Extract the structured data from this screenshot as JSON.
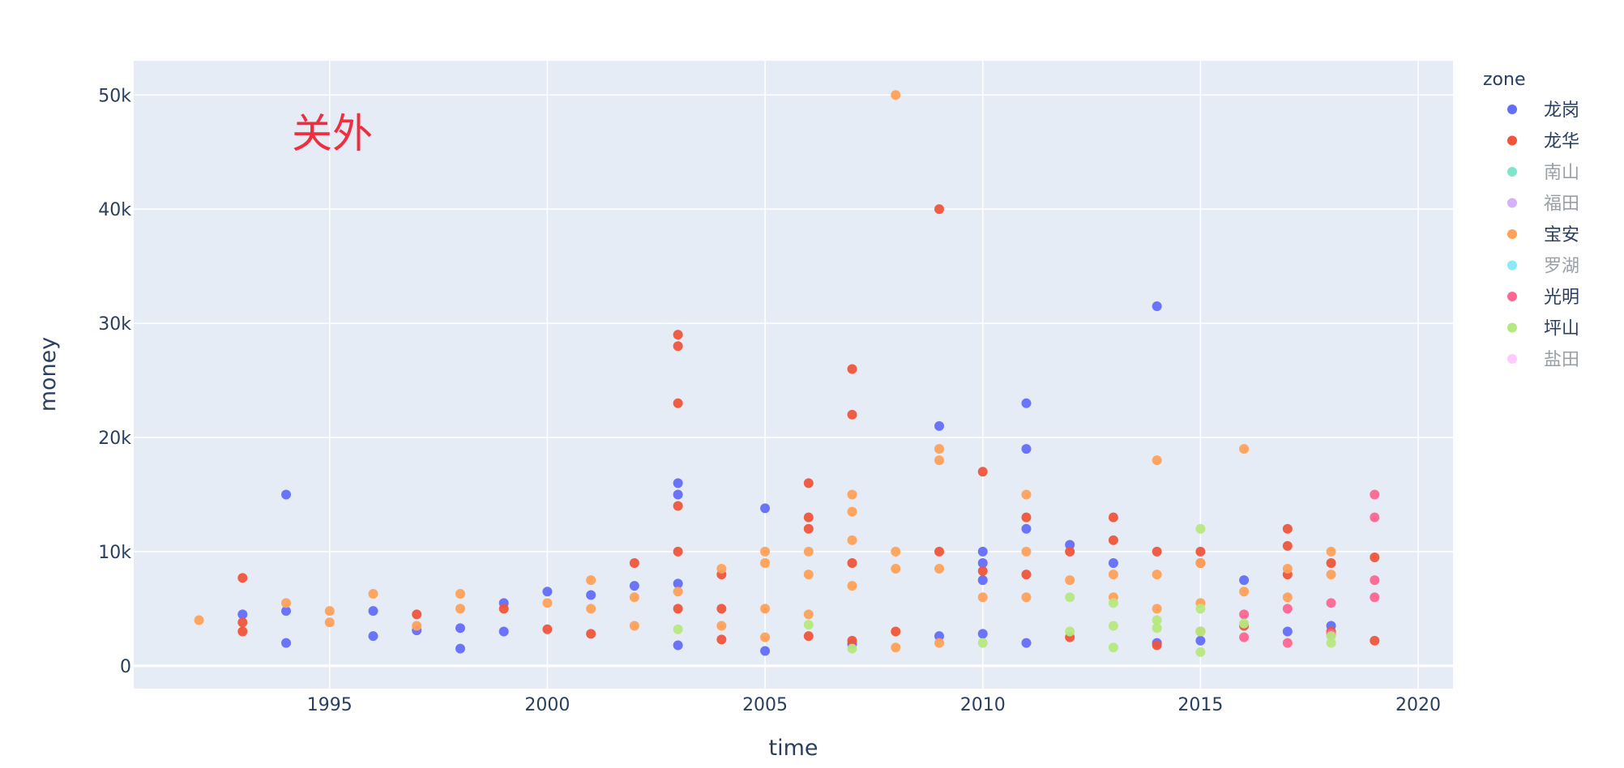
{
  "chart_data": {
    "type": "scatter",
    "title": "",
    "annotation": "关外",
    "xlabel": "time",
    "ylabel": "money",
    "xlim": [
      1990.5,
      2020.8
    ],
    "ylim": [
      -2000,
      53000
    ],
    "x_ticks": [
      1995,
      2000,
      2005,
      2010,
      2015,
      2020
    ],
    "y_ticks": [
      0,
      10000,
      20000,
      30000,
      40000,
      50000
    ],
    "y_tick_labels": [
      "0",
      "10k",
      "20k",
      "30k",
      "40k",
      "50k"
    ],
    "legend_title": "zone",
    "legend_position": "right",
    "grid": true,
    "series": [
      {
        "name": "龙岗",
        "color": "#636efa",
        "visible": true,
        "points": [
          [
            1993,
            4500
          ],
          [
            1994,
            15000
          ],
          [
            1994,
            2000
          ],
          [
            1994,
            4800
          ],
          [
            1996,
            2600
          ],
          [
            1996,
            4800
          ],
          [
            1997,
            3100
          ],
          [
            1998,
            1500
          ],
          [
            1998,
            3300
          ],
          [
            1999,
            5500
          ],
          [
            1999,
            3000
          ],
          [
            2000,
            6500
          ],
          [
            2001,
            6200
          ],
          [
            2002,
            7000
          ],
          [
            2003,
            16000
          ],
          [
            2003,
            15000
          ],
          [
            2003,
            7200
          ],
          [
            2003,
            1800
          ],
          [
            2005,
            13800
          ],
          [
            2005,
            1300
          ],
          [
            2007,
            1900
          ],
          [
            2009,
            21000
          ],
          [
            2009,
            2600
          ],
          [
            2010,
            10000
          ],
          [
            2010,
            9000
          ],
          [
            2010,
            7500
          ],
          [
            2010,
            2800
          ],
          [
            2011,
            23000
          ],
          [
            2011,
            19000
          ],
          [
            2011,
            12000
          ],
          [
            2011,
            2000
          ],
          [
            2012,
            10600
          ],
          [
            2013,
            9000
          ],
          [
            2014,
            31500
          ],
          [
            2014,
            2000
          ],
          [
            2015,
            2200
          ],
          [
            2016,
            7500
          ],
          [
            2017,
            3000
          ],
          [
            2018,
            3500
          ]
        ]
      },
      {
        "name": "龙华",
        "color": "#ef553b",
        "visible": true,
        "points": [
          [
            1993,
            7700
          ],
          [
            1993,
            3000
          ],
          [
            1993,
            3800
          ],
          [
            1997,
            4500
          ],
          [
            1999,
            5000
          ],
          [
            2000,
            3200
          ],
          [
            2001,
            2800
          ],
          [
            2002,
            9000
          ],
          [
            2003,
            29000
          ],
          [
            2003,
            28000
          ],
          [
            2003,
            23000
          ],
          [
            2003,
            14000
          ],
          [
            2003,
            10000
          ],
          [
            2003,
            5000
          ],
          [
            2004,
            8000
          ],
          [
            2004,
            2300
          ],
          [
            2004,
            5000
          ],
          [
            2006,
            16000
          ],
          [
            2006,
            13000
          ],
          [
            2006,
            12000
          ],
          [
            2006,
            2600
          ],
          [
            2007,
            26000
          ],
          [
            2007,
            22000
          ],
          [
            2007,
            9000
          ],
          [
            2007,
            2200
          ],
          [
            2008,
            3000
          ],
          [
            2009,
            40000
          ],
          [
            2009,
            10000
          ],
          [
            2010,
            17000
          ],
          [
            2010,
            8300
          ],
          [
            2011,
            13000
          ],
          [
            2011,
            8000
          ],
          [
            2012,
            10000
          ],
          [
            2012,
            2500
          ],
          [
            2013,
            13000
          ],
          [
            2013,
            11000
          ],
          [
            2014,
            10000
          ],
          [
            2014,
            1800
          ],
          [
            2015,
            10000
          ],
          [
            2015,
            9000
          ],
          [
            2015,
            3000
          ],
          [
            2016,
            3500
          ],
          [
            2017,
            12000
          ],
          [
            2017,
            10500
          ],
          [
            2017,
            8000
          ],
          [
            2018,
            9000
          ],
          [
            2018,
            3000
          ],
          [
            2019,
            9500
          ],
          [
            2019,
            2200
          ]
        ]
      },
      {
        "name": "南山",
        "color": "#00cc96",
        "visible": false,
        "points": []
      },
      {
        "name": "福田",
        "color": "#ab63fa",
        "visible": false,
        "points": []
      },
      {
        "name": "宝安",
        "color": "#ffa15a",
        "visible": true,
        "points": [
          [
            1992,
            4000
          ],
          [
            1994,
            5500
          ],
          [
            1995,
            4800
          ],
          [
            1995,
            3800
          ],
          [
            1996,
            6300
          ],
          [
            1997,
            3500
          ],
          [
            1998,
            6300
          ],
          [
            1998,
            5000
          ],
          [
            2000,
            5500
          ],
          [
            2001,
            7500
          ],
          [
            2001,
            5000
          ],
          [
            2002,
            3500
          ],
          [
            2002,
            6000
          ],
          [
            2003,
            6500
          ],
          [
            2004,
            8500
          ],
          [
            2004,
            3500
          ],
          [
            2005,
            10000
          ],
          [
            2005,
            9000
          ],
          [
            2005,
            5000
          ],
          [
            2005,
            2500
          ],
          [
            2006,
            10000
          ],
          [
            2006,
            8000
          ],
          [
            2006,
            4500
          ],
          [
            2007,
            15000
          ],
          [
            2007,
            13500
          ],
          [
            2007,
            11000
          ],
          [
            2007,
            7000
          ],
          [
            2008,
            50000
          ],
          [
            2008,
            10000
          ],
          [
            2008,
            8500
          ],
          [
            2008,
            1600
          ],
          [
            2009,
            19000
          ],
          [
            2009,
            18000
          ],
          [
            2009,
            8500
          ],
          [
            2009,
            2000
          ],
          [
            2010,
            6000
          ],
          [
            2011,
            15000
          ],
          [
            2011,
            10000
          ],
          [
            2011,
            6000
          ],
          [
            2012,
            7500
          ],
          [
            2013,
            8000
          ],
          [
            2013,
            6000
          ],
          [
            2014,
            18000
          ],
          [
            2014,
            8000
          ],
          [
            2014,
            5000
          ],
          [
            2015,
            9000
          ],
          [
            2015,
            5500
          ],
          [
            2016,
            19000
          ],
          [
            2016,
            6500
          ],
          [
            2017,
            8500
          ],
          [
            2017,
            6000
          ],
          [
            2018,
            10000
          ],
          [
            2018,
            8000
          ]
        ]
      },
      {
        "name": "罗湖",
        "color": "#19d3f3",
        "visible": false,
        "points": []
      },
      {
        "name": "光明",
        "color": "#ff6692",
        "visible": true,
        "points": [
          [
            2016,
            2500
          ],
          [
            2016,
            4500
          ],
          [
            2017,
            2000
          ],
          [
            2017,
            5000
          ],
          [
            2018,
            5500
          ],
          [
            2018,
            2800
          ],
          [
            2019,
            15000
          ],
          [
            2019,
            13000
          ],
          [
            2019,
            7500
          ],
          [
            2019,
            6000
          ]
        ]
      },
      {
        "name": "坪山",
        "color": "#b6e880",
        "visible": true,
        "points": [
          [
            2003,
            3200
          ],
          [
            2006,
            3600
          ],
          [
            2007,
            1500
          ],
          [
            2010,
            2000
          ],
          [
            2012,
            6000
          ],
          [
            2012,
            3000
          ],
          [
            2013,
            5500
          ],
          [
            2013,
            3500
          ],
          [
            2013,
            1600
          ],
          [
            2014,
            3300
          ],
          [
            2014,
            4000
          ],
          [
            2015,
            12000
          ],
          [
            2015,
            5000
          ],
          [
            2015,
            3000
          ],
          [
            2015,
            1200
          ],
          [
            2016,
            3700
          ],
          [
            2018,
            2000
          ],
          [
            2018,
            2600
          ]
        ]
      },
      {
        "name": "盐田",
        "color": "#ff97ff",
        "visible": false,
        "points": []
      }
    ]
  }
}
